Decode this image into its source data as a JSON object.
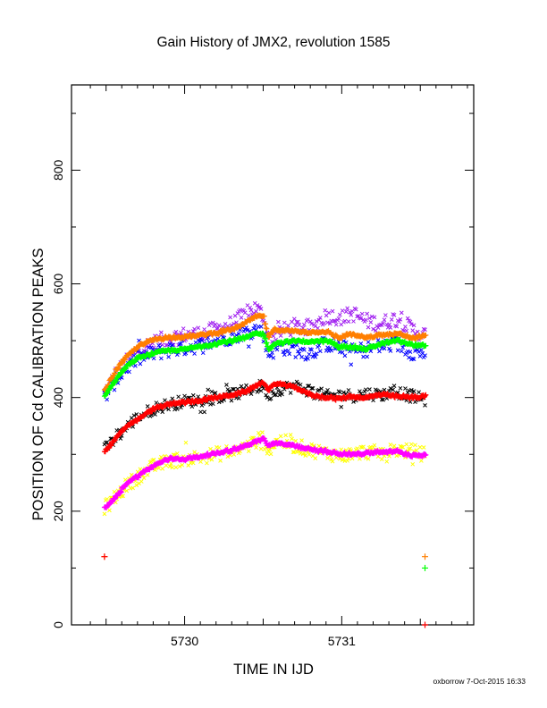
{
  "chart_data": {
    "type": "scatter",
    "title": "Gain History of JMX2, revolution 1585",
    "xlabel": "TIME IN IJD",
    "ylabel": "POSITION OF Cd CALIBRATION PEAKS",
    "footer": "oxborrow  7-Oct-2015 16:33",
    "xlim": [
      5729.28,
      5731.84
    ],
    "ylim": [
      0,
      950
    ],
    "x_ticks": [
      5730,
      5731
    ],
    "x_tick_labels": [
      "5730",
      "5731"
    ],
    "y_ticks": [
      0,
      200,
      400,
      600,
      800
    ],
    "y_tick_labels": [
      "0",
      "200",
      "400",
      "600",
      "800"
    ],
    "x_range": [
      5729.49,
      5731.53
    ],
    "series": [
      {
        "color": "#a020f0",
        "marker": "x",
        "scatter": 14,
        "points": [
          [
            5729.49,
            408
          ],
          [
            5729.56,
            440
          ],
          [
            5729.63,
            462
          ],
          [
            5729.7,
            483
          ],
          [
            5729.8,
            496
          ],
          [
            5729.9,
            505
          ],
          [
            5730.0,
            510
          ],
          [
            5730.1,
            512
          ],
          [
            5730.2,
            520
          ],
          [
            5730.3,
            530
          ],
          [
            5730.38,
            545
          ],
          [
            5730.45,
            558
          ],
          [
            5730.5,
            545
          ],
          [
            5730.53,
            505
          ],
          [
            5730.6,
            515
          ],
          [
            5730.7,
            525
          ],
          [
            5730.8,
            520
          ],
          [
            5730.9,
            545
          ],
          [
            5731.0,
            540
          ],
          [
            5731.07,
            548
          ],
          [
            5731.15,
            535
          ],
          [
            5731.25,
            530
          ],
          [
            5731.35,
            540
          ],
          [
            5731.45,
            520
          ],
          [
            5731.53,
            510
          ]
        ]
      },
      {
        "color": "#0000ff",
        "marker": "x",
        "scatter": 14,
        "points": [
          [
            5729.49,
            400
          ],
          [
            5729.56,
            430
          ],
          [
            5729.63,
            452
          ],
          [
            5729.7,
            468
          ],
          [
            5729.8,
            478
          ],
          [
            5729.9,
            484
          ],
          [
            5730.0,
            488
          ],
          [
            5730.1,
            492
          ],
          [
            5730.2,
            500
          ],
          [
            5730.3,
            508
          ],
          [
            5730.38,
            515
          ],
          [
            5730.45,
            520
          ],
          [
            5730.5,
            515
          ],
          [
            5730.53,
            475
          ],
          [
            5730.6,
            490
          ],
          [
            5730.7,
            485
          ],
          [
            5730.8,
            478
          ],
          [
            5730.9,
            495
          ],
          [
            5731.0,
            488
          ],
          [
            5731.07,
            480
          ],
          [
            5731.15,
            485
          ],
          [
            5731.25,
            490
          ],
          [
            5731.35,
            495
          ],
          [
            5731.45,
            480
          ],
          [
            5731.53,
            478
          ]
        ]
      },
      {
        "color": "#000000",
        "marker": "x",
        "scatter": 11,
        "points": [
          [
            5729.49,
            308
          ],
          [
            5729.56,
            328
          ],
          [
            5729.63,
            348
          ],
          [
            5729.7,
            365
          ],
          [
            5729.8,
            380
          ],
          [
            5729.9,
            388
          ],
          [
            5730.0,
            393
          ],
          [
            5730.1,
            396
          ],
          [
            5730.2,
            400
          ],
          [
            5730.3,
            405
          ],
          [
            5730.38,
            410
          ],
          [
            5730.45,
            418
          ],
          [
            5730.5,
            420
          ],
          [
            5730.53,
            405
          ],
          [
            5730.6,
            415
          ],
          [
            5730.7,
            420
          ],
          [
            5730.8,
            412
          ],
          [
            5730.9,
            402
          ],
          [
            5731.0,
            405
          ],
          [
            5731.07,
            403
          ],
          [
            5731.15,
            407
          ],
          [
            5731.25,
            405
          ],
          [
            5731.35,
            410
          ],
          [
            5731.45,
            402
          ],
          [
            5731.53,
            395
          ]
        ]
      },
      {
        "color": "#ffff00",
        "marker": "x",
        "scatter": 13,
        "points": [
          [
            5729.49,
            205
          ],
          [
            5729.56,
            225
          ],
          [
            5729.63,
            245
          ],
          [
            5729.7,
            260
          ],
          [
            5729.8,
            278
          ],
          [
            5729.9,
            288
          ],
          [
            5730.0,
            292
          ],
          [
            5730.1,
            295
          ],
          [
            5730.2,
            300
          ],
          [
            5730.3,
            305
          ],
          [
            5730.38,
            312
          ],
          [
            5730.45,
            322
          ],
          [
            5730.5,
            330
          ],
          [
            5730.53,
            305
          ],
          [
            5730.6,
            325
          ],
          [
            5730.7,
            315
          ],
          [
            5730.8,
            308
          ],
          [
            5730.9,
            302
          ],
          [
            5731.0,
            298
          ],
          [
            5731.07,
            300
          ],
          [
            5731.15,
            305
          ],
          [
            5731.25,
            302
          ],
          [
            5731.35,
            308
          ],
          [
            5731.45,
            305
          ],
          [
            5731.53,
            300
          ]
        ]
      },
      {
        "color": "#ff7f00",
        "marker": "+",
        "scatter": 2,
        "points": [
          [
            5729.49,
            412
          ],
          [
            5729.56,
            448
          ],
          [
            5729.63,
            472
          ],
          [
            5729.7,
            490
          ],
          [
            5729.8,
            502
          ],
          [
            5729.9,
            506
          ],
          [
            5730.0,
            507
          ],
          [
            5730.1,
            510
          ],
          [
            5730.2,
            514
          ],
          [
            5730.3,
            520
          ],
          [
            5730.38,
            530
          ],
          [
            5730.45,
            542
          ],
          [
            5730.5,
            544
          ],
          [
            5730.53,
            505
          ],
          [
            5730.57,
            520
          ],
          [
            5730.7,
            517
          ],
          [
            5730.8,
            515
          ],
          [
            5730.9,
            516
          ],
          [
            5730.98,
            505
          ],
          [
            5731.05,
            512
          ],
          [
            5731.15,
            505
          ],
          [
            5731.25,
            510
          ],
          [
            5731.35,
            512
          ],
          [
            5731.45,
            505
          ],
          [
            5731.53,
            510
          ]
        ]
      },
      {
        "color": "#00ff00",
        "marker": "+",
        "scatter": 2,
        "points": [
          [
            5729.49,
            402
          ],
          [
            5729.56,
            432
          ],
          [
            5729.63,
            455
          ],
          [
            5729.7,
            470
          ],
          [
            5729.8,
            478
          ],
          [
            5729.9,
            483
          ],
          [
            5730.0,
            485
          ],
          [
            5730.1,
            490
          ],
          [
            5730.2,
            495
          ],
          [
            5730.3,
            500
          ],
          [
            5730.38,
            505
          ],
          [
            5730.45,
            512
          ],
          [
            5730.5,
            512
          ],
          [
            5730.53,
            485
          ],
          [
            5730.57,
            495
          ],
          [
            5730.7,
            500
          ],
          [
            5730.8,
            498
          ],
          [
            5730.9,
            500
          ],
          [
            5730.98,
            488
          ],
          [
            5731.05,
            490
          ],
          [
            5731.15,
            485
          ],
          [
            5731.25,
            495
          ],
          [
            5731.35,
            500
          ],
          [
            5731.45,
            492
          ],
          [
            5731.53,
            492
          ]
        ]
      },
      {
        "color": "#ff0000",
        "marker": "+",
        "scatter": 2,
        "points": [
          [
            5729.49,
            305
          ],
          [
            5729.56,
            328
          ],
          [
            5729.63,
            350
          ],
          [
            5729.7,
            362
          ],
          [
            5729.8,
            380
          ],
          [
            5729.9,
            388
          ],
          [
            5730.0,
            392
          ],
          [
            5730.1,
            395
          ],
          [
            5730.2,
            400
          ],
          [
            5730.3,
            405
          ],
          [
            5730.38,
            410
          ],
          [
            5730.45,
            420
          ],
          [
            5730.5,
            428
          ],
          [
            5730.53,
            412
          ],
          [
            5730.57,
            425
          ],
          [
            5730.7,
            418
          ],
          [
            5730.8,
            405
          ],
          [
            5730.9,
            400
          ],
          [
            5730.98,
            398
          ],
          [
            5731.05,
            402
          ],
          [
            5731.15,
            400
          ],
          [
            5731.25,
            405
          ],
          [
            5731.35,
            402
          ],
          [
            5731.45,
            400
          ],
          [
            5731.53,
            402
          ]
        ]
      },
      {
        "color": "#ff00ff",
        "marker": "+",
        "scatter": 2,
        "points": [
          [
            5729.49,
            205
          ],
          [
            5729.56,
            225
          ],
          [
            5729.63,
            250
          ],
          [
            5729.7,
            262
          ],
          [
            5729.8,
            280
          ],
          [
            5729.9,
            292
          ],
          [
            5730.0,
            292
          ],
          [
            5730.1,
            296
          ],
          [
            5730.2,
            302
          ],
          [
            5730.3,
            308
          ],
          [
            5730.38,
            315
          ],
          [
            5730.45,
            322
          ],
          [
            5730.5,
            328
          ],
          [
            5730.53,
            315
          ],
          [
            5730.57,
            320
          ],
          [
            5730.7,
            315
          ],
          [
            5730.8,
            308
          ],
          [
            5730.9,
            305
          ],
          [
            5730.98,
            302
          ],
          [
            5731.05,
            300
          ],
          [
            5731.15,
            302
          ],
          [
            5731.25,
            305
          ],
          [
            5731.35,
            305
          ],
          [
            5731.45,
            298
          ],
          [
            5731.53,
            300
          ]
        ]
      }
    ],
    "extra_markers": [
      {
        "color": "#ff7f00",
        "marker": "+",
        "x": 5729.49,
        "y": 120
      },
      {
        "color": "#ff0000",
        "marker": "+",
        "x": 5729.49,
        "y": 120
      },
      {
        "color": "#ff7f00",
        "marker": "+",
        "x": 5731.53,
        "y": 120
      },
      {
        "color": "#00ff00",
        "marker": "+",
        "x": 5731.53,
        "y": 100
      },
      {
        "color": "#ff0000",
        "marker": "+",
        "x": 5731.53,
        "y": 0
      }
    ]
  }
}
